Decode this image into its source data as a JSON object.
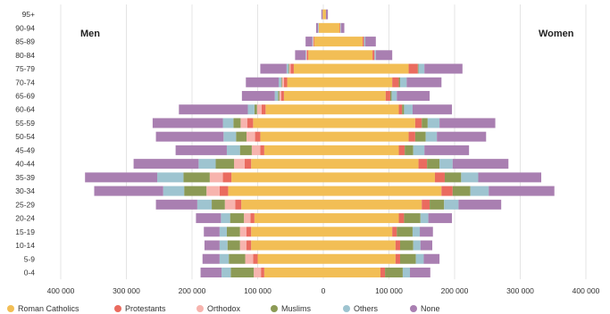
{
  "chart_data": {
    "type": "bar",
    "orientation": "horizontal",
    "layout": "population-pyramid",
    "stacked": true,
    "side_labels": {
      "left": "Men",
      "right": "Women"
    },
    "categories": [
      "95+",
      "90-94",
      "85-89",
      "80-84",
      "75-79",
      "70-74",
      "65-69",
      "60-64",
      "55-59",
      "50-54",
      "45-49",
      "40-44",
      "35-39",
      "30-34",
      "25-29",
      "20-24",
      "15-19",
      "10-14",
      "5-9",
      "0-4"
    ],
    "x_ticks": [
      "400 000",
      "300 000",
      "200 000",
      "100 000",
      "0",
      "100 000",
      "200 000",
      "300 000",
      "400 000"
    ],
    "xlim": [
      -400000,
      400000
    ],
    "grid": true,
    "legend_position": "bottom",
    "series": [
      {
        "name": "Roman Catholics",
        "color": "#f2be55",
        "men": [
          1000,
          7000,
          14000,
          23000,
          45000,
          55000,
          60000,
          88000,
          107000,
          96000,
          90000,
          110000,
          140000,
          145000,
          125000,
          105000,
          110000,
          110000,
          100000,
          90000
        ],
        "women": [
          4000,
          25000,
          60000,
          75000,
          130000,
          105000,
          95000,
          115000,
          140000,
          130000,
          115000,
          145000,
          170000,
          180000,
          150000,
          115000,
          105000,
          110000,
          110000,
          87000
        ]
      },
      {
        "name": "Protestants",
        "color": "#ea6b5f",
        "men": [
          0,
          0,
          1000,
          2000,
          5000,
          5000,
          4000,
          6000,
          9000,
          8000,
          6000,
          10000,
          13000,
          13000,
          9000,
          6000,
          7000,
          7000,
          7000,
          5000
        ],
        "women": [
          0,
          1000,
          2000,
          3000,
          14000,
          10000,
          7000,
          5000,
          10000,
          10000,
          9000,
          13000,
          15000,
          17000,
          12000,
          8000,
          7000,
          7000,
          7000,
          7000
        ]
      },
      {
        "name": "Orthodox",
        "color": "#f7b4ae",
        "men": [
          0,
          0,
          1000,
          1000,
          2000,
          3000,
          3000,
          7000,
          10000,
          13000,
          13000,
          16000,
          20000,
          20000,
          16000,
          10000,
          10000,
          10000,
          12000,
          11000
        ]
      },
      {
        "name": "Muslims",
        "color": "#8c9a55",
        "men": [
          0,
          0,
          0,
          0,
          1000,
          1000,
          2000,
          4000,
          11000,
          16000,
          18000,
          28000,
          40000,
          34000,
          20000,
          21000,
          20000,
          19000,
          25000,
          35000
        ],
        "women": [
          0,
          0,
          0,
          0,
          1000,
          2000,
          2000,
          3000,
          9000,
          16000,
          13000,
          19000,
          25000,
          27000,
          22000,
          25000,
          24000,
          20000,
          24000,
          27000
        ]
      },
      {
        "name": "Others",
        "color": "#9ec4d0",
        "men": [
          0,
          1000,
          1000,
          1000,
          3000,
          4000,
          5000,
          10000,
          16000,
          19000,
          20000,
          26000,
          40000,
          32000,
          22000,
          14000,
          11000,
          12000,
          14000,
          14000
        ],
        "women": [
          0,
          1000,
          2000,
          2000,
          9000,
          10000,
          8000,
          13000,
          18000,
          17000,
          17000,
          20000,
          26000,
          28000,
          22000,
          12000,
          11000,
          11000,
          12000,
          11000
        ]
      },
      {
        "name": "None",
        "color": "#a97fb1",
        "men": [
          2000,
          3000,
          10000,
          16000,
          40000,
          50000,
          50000,
          105000,
          107000,
          103000,
          78000,
          99000,
          110000,
          105000,
          63000,
          38000,
          24000,
          23000,
          26000,
          32000
        ],
        "women": [
          3000,
          5000,
          16000,
          25000,
          58000,
          53000,
          50000,
          60000,
          85000,
          75000,
          68000,
          85000,
          96000,
          100000,
          65000,
          36000,
          20000,
          18000,
          24000,
          31000
        ]
      }
    ]
  }
}
